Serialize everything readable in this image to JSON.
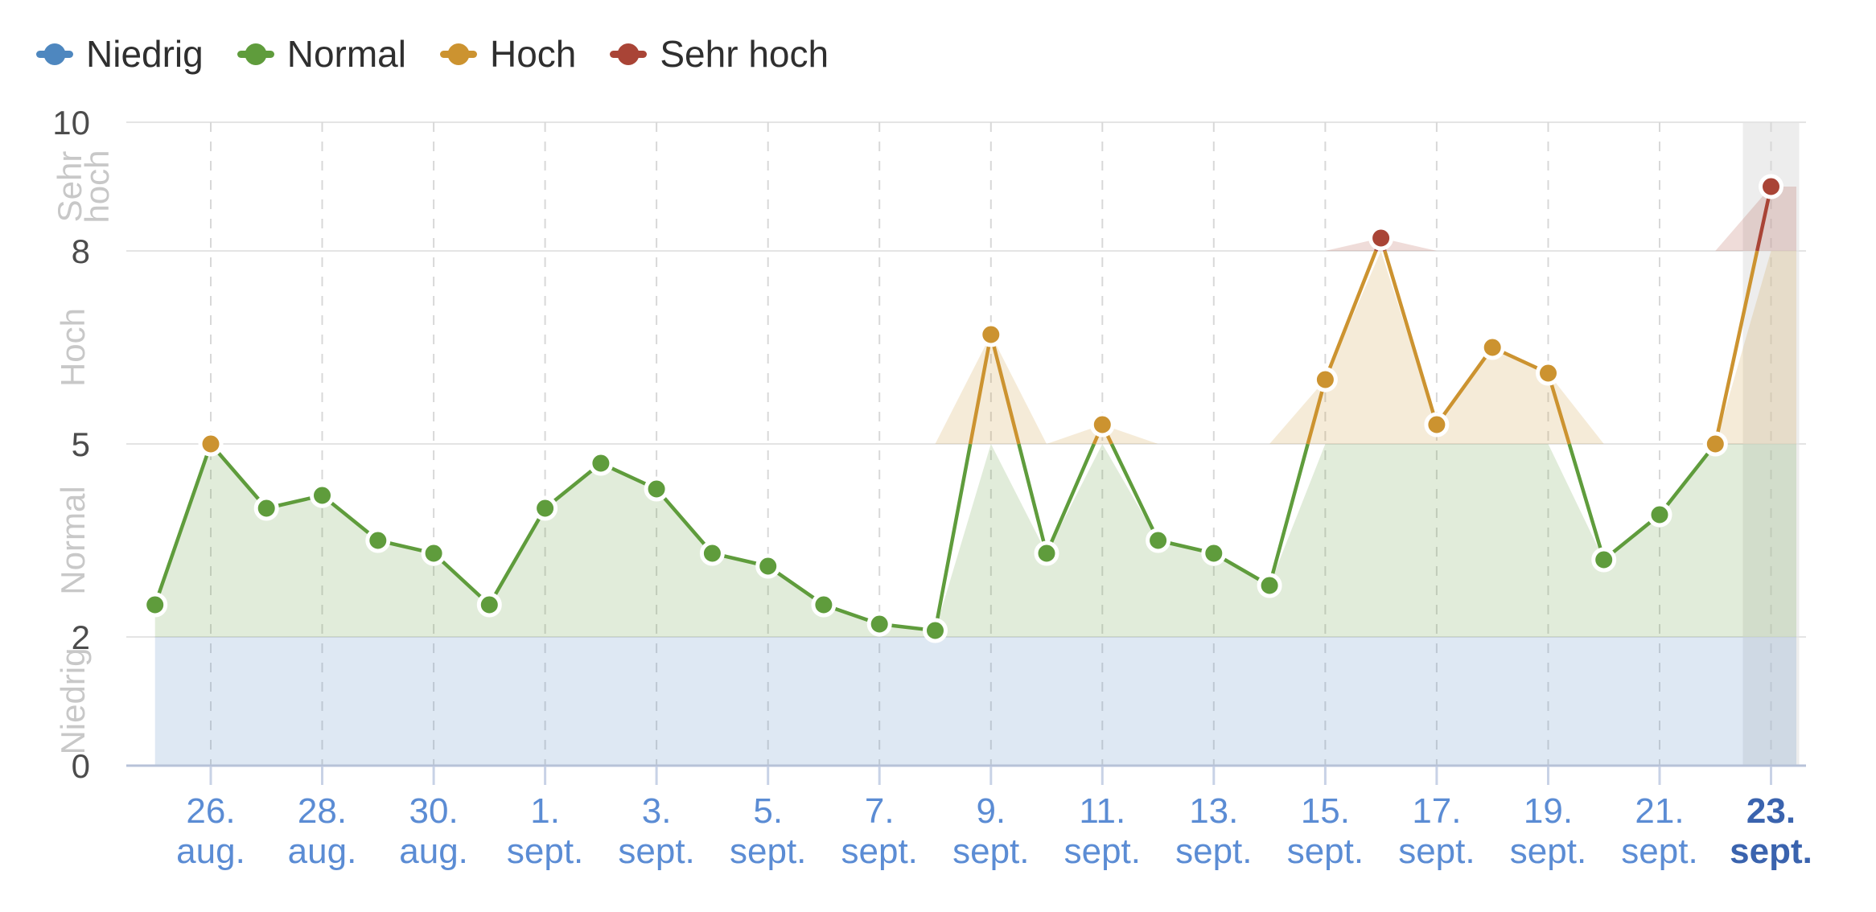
{
  "chart_data": {
    "type": "area",
    "title": "",
    "legend_position": "top-left",
    "grid": true,
    "ylim": [
      0,
      10
    ],
    "yticks": [
      0,
      2,
      5,
      8,
      10
    ],
    "tick_interval_days": 2,
    "current_x": "23. sept.",
    "zones": [
      {
        "label": "Niedrig",
        "from": 0,
        "to": 2,
        "color": "#4e87bf"
      },
      {
        "label": "Normal",
        "from": 2,
        "to": 5,
        "color": "#5f9c3c"
      },
      {
        "label": "Hoch",
        "from": 5,
        "to": 8,
        "color": "#cc9330"
      },
      {
        "label": "Sehr hoch",
        "from": 8,
        "to": 10,
        "color": "#a94436"
      }
    ],
    "legend": [
      "Niedrig",
      "Normal",
      "Hoch",
      "Sehr hoch"
    ],
    "x": [
      "25. aug.",
      "26. aug.",
      "27. aug.",
      "28. aug.",
      "29. aug.",
      "30. aug.",
      "31. aug.",
      "1. sept.",
      "2. sept.",
      "3. sept.",
      "4. sept.",
      "5. sept.",
      "6. sept.",
      "7. sept.",
      "8. sept.",
      "9. sept.",
      "10. sept.",
      "11. sept.",
      "12. sept.",
      "13. sept.",
      "14. sept.",
      "15. sept.",
      "16. sept.",
      "17. sept.",
      "18. sept.",
      "19. sept.",
      "20. sept.",
      "21. sept.",
      "22. sept.",
      "23. sept."
    ],
    "values": [
      2.5,
      5.0,
      4.0,
      4.2,
      3.5,
      3.3,
      2.5,
      4.0,
      4.7,
      4.3,
      3.3,
      3.1,
      2.5,
      2.2,
      2.1,
      6.7,
      3.3,
      5.3,
      3.5,
      3.3,
      2.8,
      6.0,
      8.2,
      5.3,
      6.5,
      6.1,
      3.2,
      3.9,
      5.0,
      9.0
    ],
    "x_tick_labels": [
      {
        "day": "26.",
        "month": "aug."
      },
      {
        "day": "28.",
        "month": "aug."
      },
      {
        "day": "30.",
        "month": "aug."
      },
      {
        "day": "1.",
        "month": "sept."
      },
      {
        "day": "3.",
        "month": "sept."
      },
      {
        "day": "5.",
        "month": "sept."
      },
      {
        "day": "7.",
        "month": "sept."
      },
      {
        "day": "9.",
        "month": "sept."
      },
      {
        "day": "11.",
        "month": "sept."
      },
      {
        "day": "13.",
        "month": "sept."
      },
      {
        "day": "15.",
        "month": "sept."
      },
      {
        "day": "17.",
        "month": "sept."
      },
      {
        "day": "19.",
        "month": "sept."
      },
      {
        "day": "21.",
        "month": "sept."
      },
      {
        "day": "23.",
        "month": "sept."
      }
    ]
  },
  "styles": {
    "background": "#ffffff",
    "legend_text": "#2f2f2f",
    "x_label": "#5b8cd4",
    "x_label_current": "#3a63ae",
    "y_label": "#4c4c4c",
    "band_label": "#c8c8c8",
    "gridline": "#e4e4e4",
    "dashed_gridline": "#d8d8d8",
    "axis_line": "#b7c2d8",
    "tick_mark": "#c8d2e6",
    "current_day_band": "#ededed",
    "fill_opacity": 0.19
  }
}
